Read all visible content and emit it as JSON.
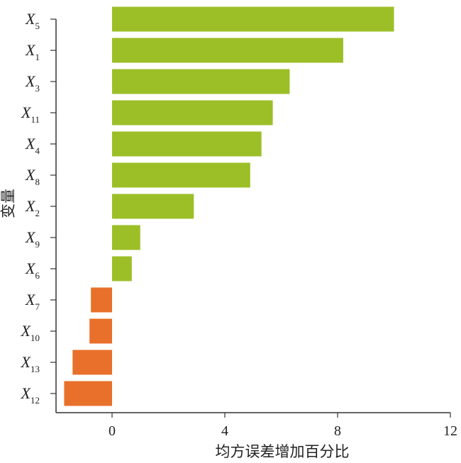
{
  "chart_data": {
    "type": "bar",
    "orientation": "horizontal",
    "xlabel": "均方误差增加百分比",
    "ylabel": "变量",
    "xlim": [
      -2,
      12
    ],
    "xticks": [
      0,
      4,
      8,
      12
    ],
    "grid": false,
    "colors": {
      "positive": "#9cbf27",
      "negative": "#e8702a"
    },
    "categories": [
      {
        "base": "X",
        "sub": "5"
      },
      {
        "base": "X",
        "sub": "1"
      },
      {
        "base": "X",
        "sub": "3"
      },
      {
        "base": "X",
        "sub": "11"
      },
      {
        "base": "X",
        "sub": "4"
      },
      {
        "base": "X",
        "sub": "8"
      },
      {
        "base": "X",
        "sub": "2"
      },
      {
        "base": "X",
        "sub": "9"
      },
      {
        "base": "X",
        "sub": "6"
      },
      {
        "base": "X",
        "sub": "7"
      },
      {
        "base": "X",
        "sub": "10"
      },
      {
        "base": "X",
        "sub": "13"
      },
      {
        "base": "X",
        "sub": "12"
      }
    ],
    "values": [
      10.0,
      8.2,
      6.3,
      5.7,
      5.3,
      4.9,
      2.9,
      1.0,
      0.7,
      -0.75,
      -0.8,
      -1.4,
      -1.7
    ]
  }
}
